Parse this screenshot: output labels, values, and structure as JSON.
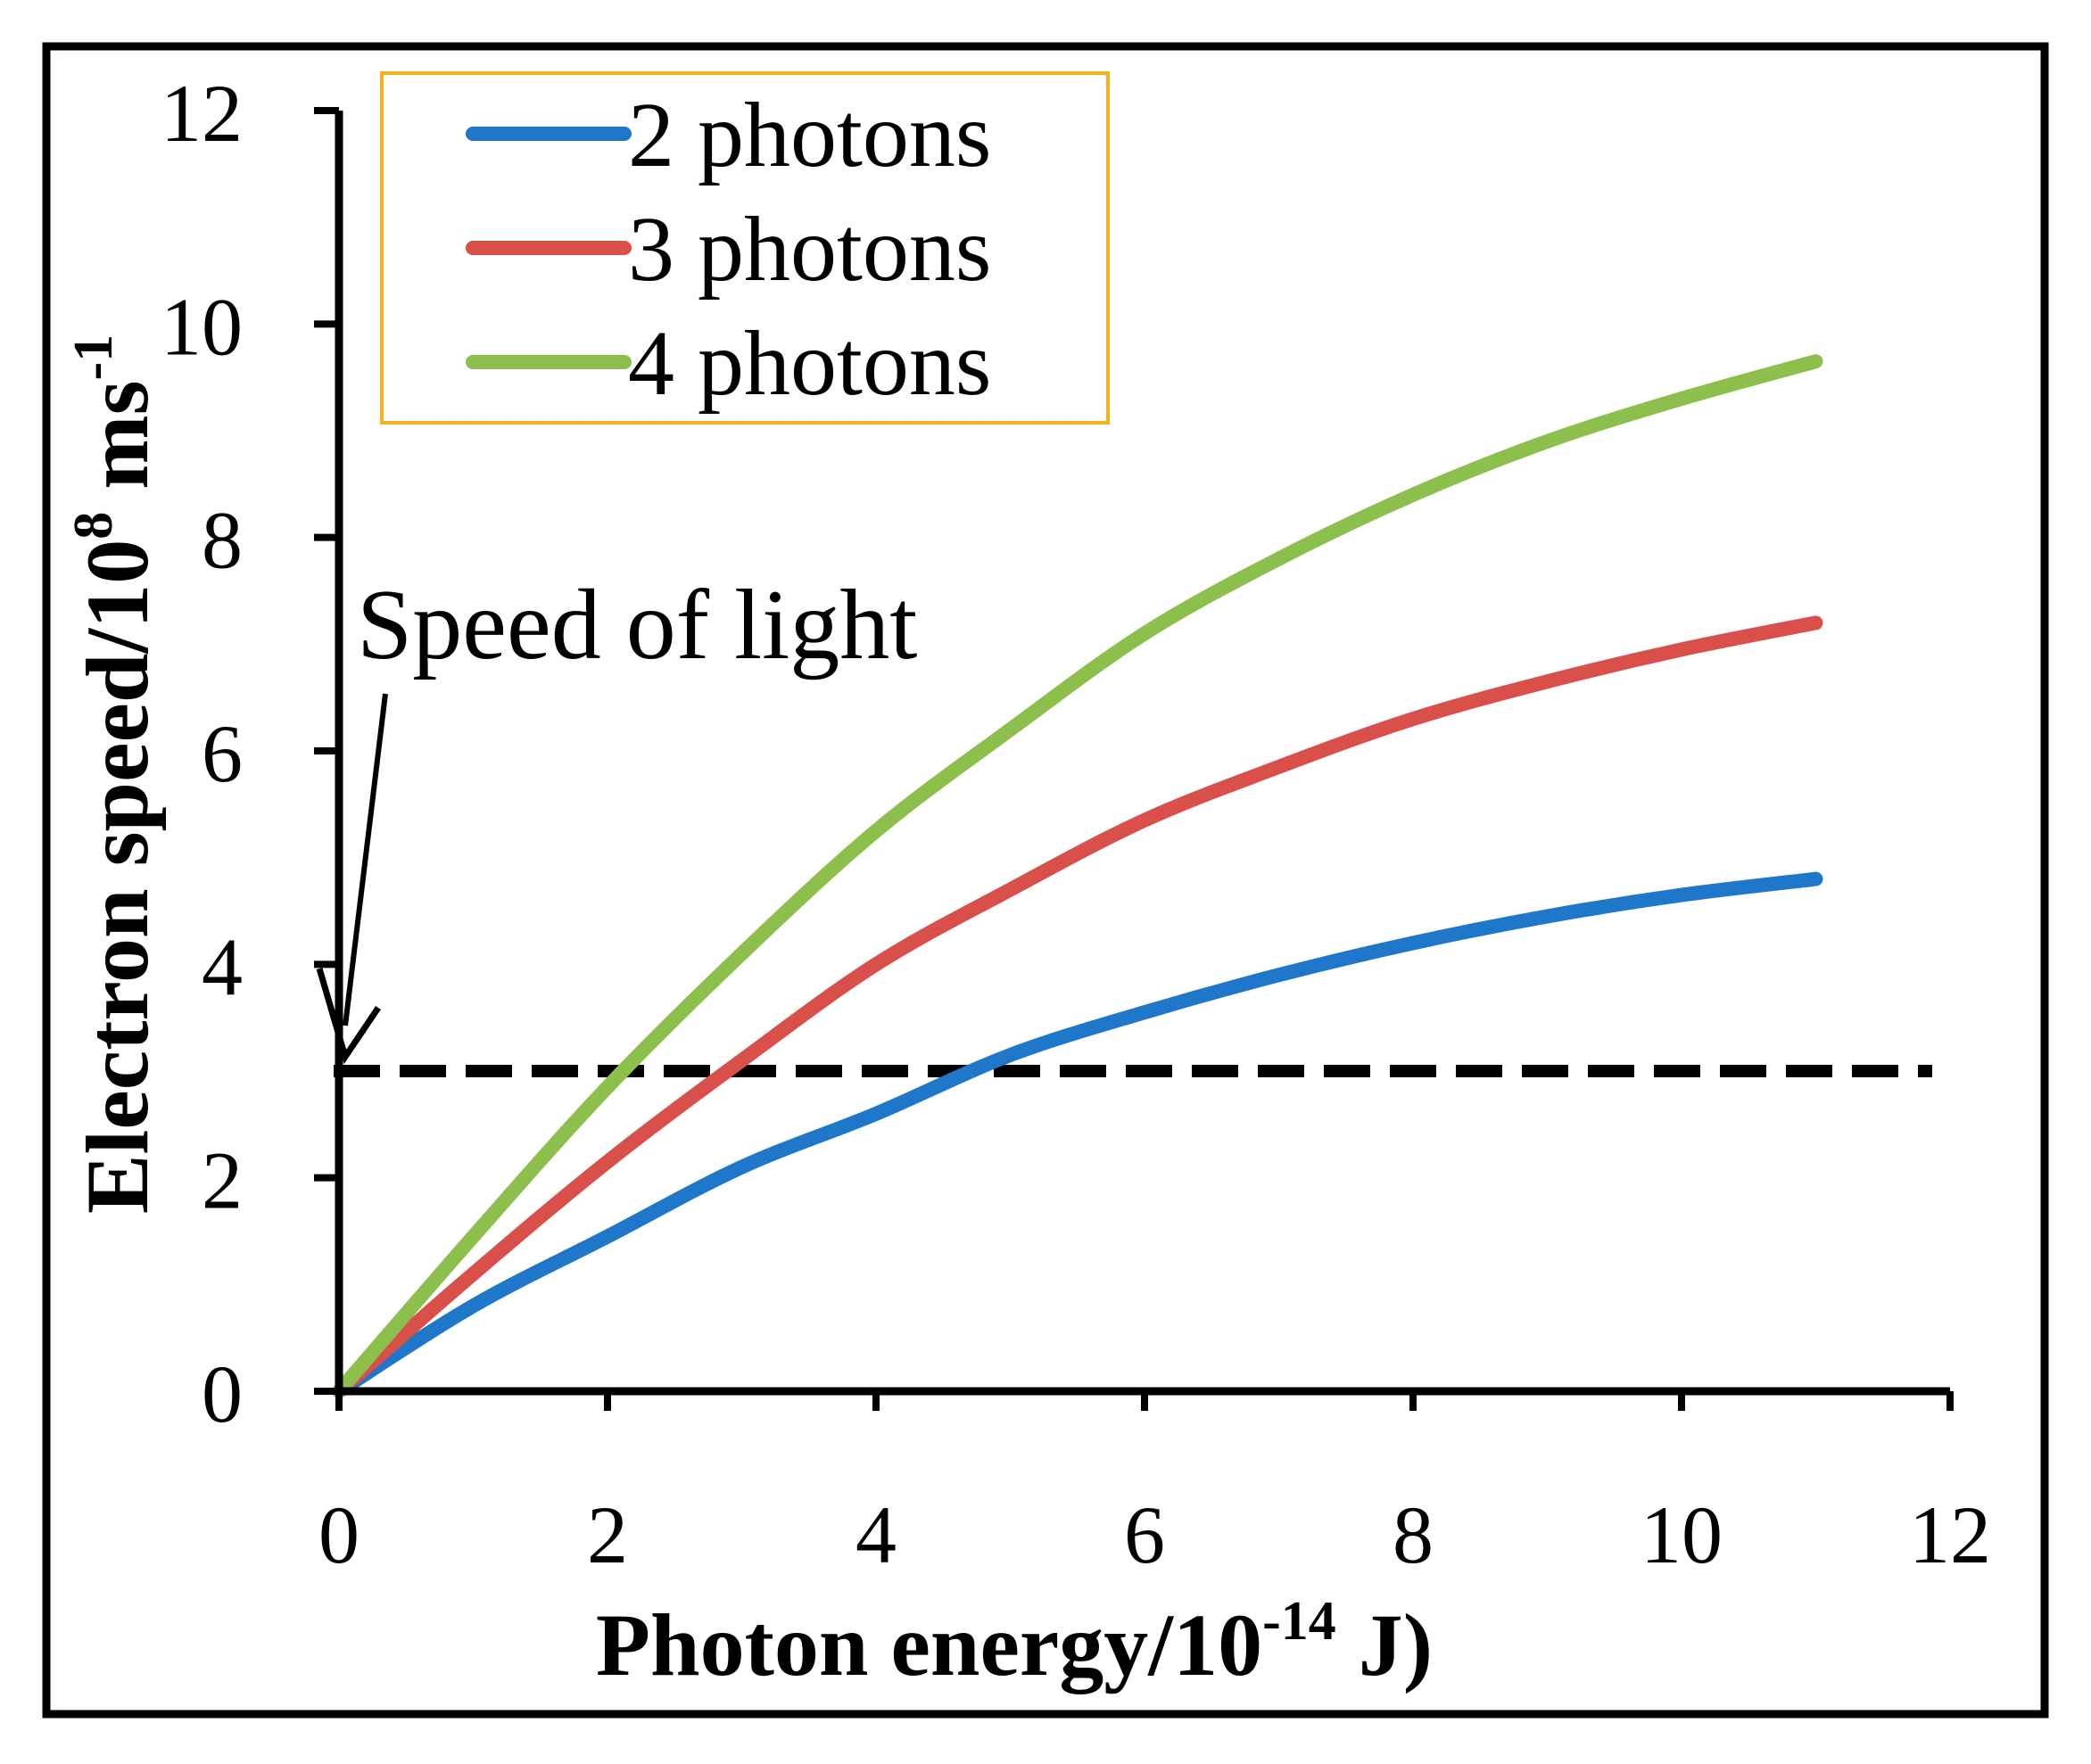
{
  "chart_data": {
    "type": "line",
    "title": "",
    "xlabel": {
      "base": "Photon energy/10",
      "exp": "-14",
      "suffix": " J)"
    },
    "ylabel": {
      "base": "Electron speed/10",
      "exp": "8",
      "unit": " ms",
      "unit_exp": "-1"
    },
    "xlim": [
      0,
      12
    ],
    "ylim": [
      0,
      12
    ],
    "x_ticks": [
      0,
      2,
      4,
      6,
      8,
      10,
      12
    ],
    "y_ticks": [
      0,
      2,
      4,
      6,
      8,
      10,
      12
    ],
    "legend_position": "top-left",
    "series": [
      {
        "name": "2 photons",
        "color": "#1f77c9",
        "x": [
          0,
          1,
          2,
          3,
          4,
          5,
          6,
          7,
          8,
          9,
          10,
          11
        ],
        "y": [
          0,
          0.8,
          1.45,
          2.1,
          2.6,
          3.15,
          3.55,
          3.9,
          4.2,
          4.45,
          4.65,
          4.8
        ]
      },
      {
        "name": "3 photons",
        "color": "#d9504a",
        "x": [
          0,
          1,
          2,
          3,
          4,
          5,
          6,
          7,
          8,
          9,
          10,
          11
        ],
        "y": [
          0,
          1.1,
          2.15,
          3.1,
          4.0,
          4.7,
          5.35,
          5.85,
          6.3,
          6.65,
          6.95,
          7.2
        ]
      },
      {
        "name": "4 photons",
        "color": "#8cbf4c",
        "x": [
          0,
          1,
          2,
          3,
          4,
          5,
          6,
          7,
          8,
          9,
          10,
          11
        ],
        "y": [
          0,
          1.45,
          2.85,
          4.1,
          5.25,
          6.2,
          7.1,
          7.8,
          8.4,
          8.9,
          9.3,
          9.65
        ]
      }
    ],
    "reference_line": {
      "label": "Speed of light",
      "y": 3.0,
      "style": "dashed",
      "color": "#000000"
    }
  }
}
